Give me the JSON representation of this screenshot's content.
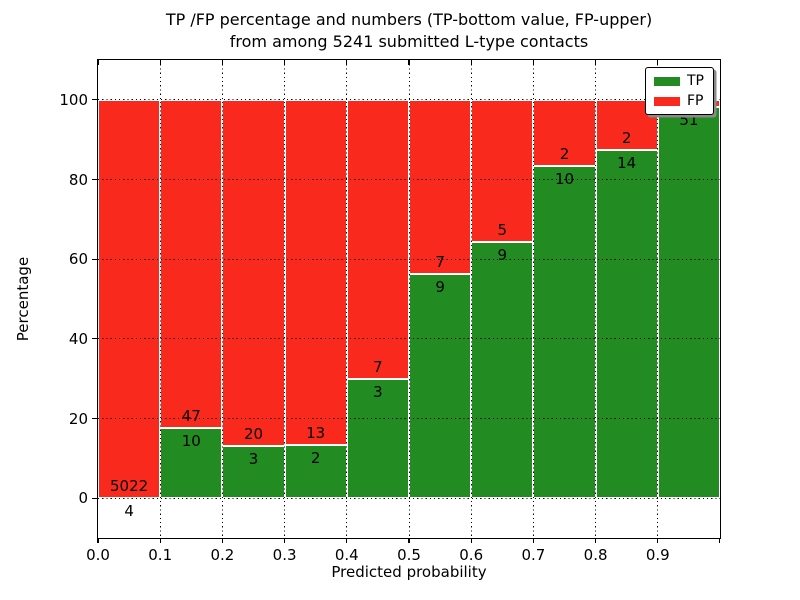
{
  "figure": {
    "title_line1": "TP /FP percentage and numbers (TP-bottom value, FP-upper)",
    "title_line2": "from among 5241 submitted L-type contacts",
    "background_color": "#ffffff"
  },
  "chart_data": {
    "type": "bar",
    "subtype": "stacked-percentage-histogram",
    "title": "TP /FP percentage and numbers (TP-bottom value, FP-upper)\nfrom among 5241 submitted L-type contacts",
    "xlabel": "Predicted probability",
    "ylabel": "Percentage",
    "total_contacts": 5241,
    "xlim": [
      0.0,
      1.0
    ],
    "ylim": [
      -10,
      110
    ],
    "grid": "dotted",
    "bin_width": 0.1,
    "bin_starts": [
      0.0,
      0.1,
      0.2,
      0.3,
      0.4,
      0.5,
      0.6,
      0.7,
      0.8,
      0.9
    ],
    "x_tick_values": [
      0.0,
      0.1,
      0.2,
      0.3,
      0.4,
      0.5,
      0.6,
      0.7,
      0.8,
      0.9
    ],
    "x_tick_labels": [
      "0.0",
      "0.1",
      "0.2",
      "0.3",
      "0.4",
      "0.5",
      "0.6",
      "0.7",
      "0.8",
      "0.9"
    ],
    "y_tick_values": [
      0,
      20,
      40,
      60,
      80,
      100
    ],
    "y_tick_labels": [
      "0",
      "20",
      "40",
      "60",
      "80",
      "100"
    ],
    "series": [
      {
        "name": "TP",
        "color": "#228b22",
        "counts": [
          4,
          10,
          3,
          2,
          3,
          9,
          9,
          10,
          14,
          51
        ],
        "labels": [
          "4",
          "10",
          "3",
          "2",
          "3",
          "9",
          "9",
          "10",
          "14",
          "51"
        ]
      },
      {
        "name": "FP",
        "color": "#f92a1d",
        "counts": [
          5022,
          47,
          20,
          13,
          7,
          7,
          5,
          2,
          2,
          1
        ],
        "labels": [
          "5022",
          "47",
          "20",
          "13",
          "7",
          "7",
          "5",
          "2",
          "2",
          ""
        ]
      }
    ],
    "tp_percent_of_bin": [
      0.08,
      17.54,
      13.04,
      13.33,
      30.0,
      56.25,
      64.29,
      83.33,
      87.5,
      98.08
    ],
    "legend": {
      "position": "upper right",
      "entries": [
        {
          "label": "TP",
          "color": "#228b22"
        },
        {
          "label": "FP",
          "color": "#f92a1d"
        }
      ]
    }
  }
}
